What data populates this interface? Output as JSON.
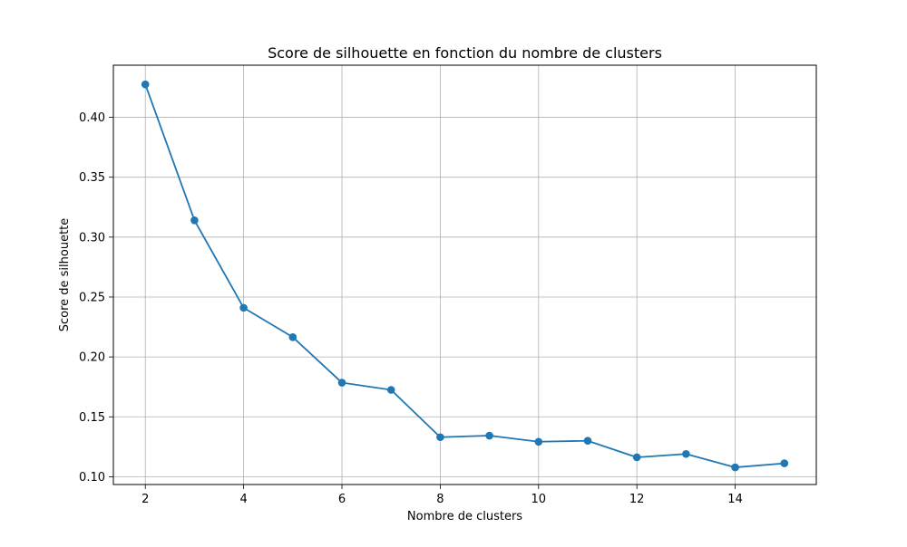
{
  "chart_data": {
    "type": "line",
    "title": "Score de silhouette en fonction du nombre de clusters",
    "xlabel": "Nombre de clusters",
    "ylabel": "Score de silhouette",
    "xlim": [
      1.35,
      15.65
    ],
    "ylim": [
      0.0935,
      0.4435
    ],
    "xticks": [
      2,
      4,
      6,
      8,
      10,
      12,
      14
    ],
    "yticks": [
      0.1,
      0.15,
      0.2,
      0.25,
      0.3,
      0.35,
      0.4
    ],
    "xtick_labels": [
      "2",
      "4",
      "6",
      "8",
      "10",
      "12",
      "14"
    ],
    "ytick_labels": [
      "0.10",
      "0.15",
      "0.20",
      "0.25",
      "0.30",
      "0.35",
      "0.40"
    ],
    "grid": true,
    "marker": "circle",
    "series": [
      {
        "x": [
          2,
          3,
          4,
          5,
          6,
          7,
          8,
          9,
          10,
          11,
          12,
          13,
          14,
          15
        ],
        "values": [
          0.4275,
          0.314,
          0.241,
          0.2165,
          0.1785,
          0.1725,
          0.133,
          0.1343,
          0.1292,
          0.13,
          0.1162,
          0.119,
          0.1078,
          0.1112
        ],
        "color": "#1f77b4"
      }
    ]
  }
}
